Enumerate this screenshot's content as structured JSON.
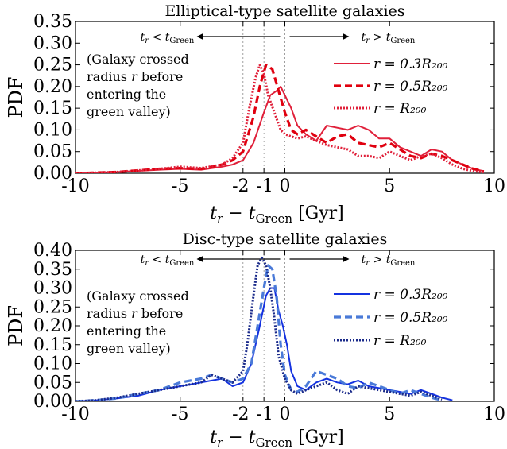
{
  "chart_data": [
    {
      "type": "line",
      "title": "Elliptical-type satellite galaxies",
      "xlabel": "t_r − t_Green [Gyr]",
      "ylabel": "PDF",
      "xlim": [
        -10,
        10
      ],
      "ylim": [
        0,
        0.35
      ],
      "xticks": [
        "-10",
        "-5",
        "-2",
        "-1",
        "0",
        "5",
        "10"
      ],
      "xtick_values": [
        -10,
        -5,
        -2,
        -1,
        0,
        5,
        10
      ],
      "yticks": [
        "0.00",
        "0.05",
        "0.10",
        "0.15",
        "0.20",
        "0.25",
        "0.30",
        "0.35"
      ],
      "grid_x": [
        -2,
        -1,
        0
      ],
      "annotation": "(Galaxy crossed|radius r before|entering the|green valley)",
      "arrow_left_label": "t_r < t_Green",
      "arrow_right_label": "t_r > t_Green",
      "legend_position": "right",
      "series": [
        {
          "name": "r = 0.3R₂₀₀",
          "style": "solid",
          "color": "#e0203a",
          "x": [
            -10,
            -8,
            -6,
            -5,
            -4,
            -3,
            -2.5,
            -2,
            -1.5,
            -1,
            -0.7,
            -0.4,
            -0.2,
            0,
            0.3,
            0.6,
            1,
            1.5,
            2,
            2.5,
            3,
            3.5,
            4,
            4.5,
            5,
            5.5,
            6,
            6.5,
            7,
            7.5,
            8,
            8.5,
            9,
            9.5
          ],
          "y": [
            0,
            0.003,
            0.008,
            0.01,
            0.008,
            0.015,
            0.02,
            0.03,
            0.07,
            0.14,
            0.18,
            0.19,
            0.2,
            0.18,
            0.15,
            0.11,
            0.09,
            0.075,
            0.11,
            0.105,
            0.1,
            0.11,
            0.1,
            0.08,
            0.08,
            0.06,
            0.05,
            0.04,
            0.055,
            0.05,
            0.03,
            0.02,
            0.01,
            0.005
          ]
        },
        {
          "name": "r = 0.5R₂₀₀",
          "style": "dashed",
          "color": "#e0000f",
          "x": [
            -10,
            -8,
            -6,
            -5,
            -4,
            -3,
            -2.5,
            -2,
            -1.5,
            -1.2,
            -0.9,
            -0.6,
            -0.3,
            0,
            0.3,
            0.6,
            1,
            1.5,
            2,
            2.5,
            3,
            3.5,
            4,
            4.5,
            5,
            5.5,
            6,
            6.5,
            7,
            7.5,
            8,
            8.5,
            9,
            9.5
          ],
          "y": [
            0,
            0.003,
            0.01,
            0.012,
            0.01,
            0.02,
            0.03,
            0.05,
            0.13,
            0.2,
            0.25,
            0.24,
            0.19,
            0.14,
            0.1,
            0.09,
            0.1,
            0.085,
            0.07,
            0.085,
            0.09,
            0.07,
            0.065,
            0.06,
            0.07,
            0.055,
            0.04,
            0.035,
            0.045,
            0.04,
            0.03,
            0.02,
            0.01,
            0.004
          ]
        },
        {
          "name": "r = R₂₀₀",
          "style": "dotted",
          "color": "#e0203a",
          "x": [
            -10,
            -8,
            -6,
            -5,
            -4,
            -3,
            -2.5,
            -2,
            -1.7,
            -1.4,
            -1.2,
            -1,
            -0.8,
            -0.5,
            -0.2,
            0,
            0.3,
            0.6,
            1,
            1.5,
            2,
            2.5,
            3,
            3.5,
            4,
            4.5,
            5,
            5.5,
            6,
            6.5,
            7,
            7.5,
            8,
            8.5,
            9,
            9.5
          ],
          "y": [
            0,
            0.003,
            0.01,
            0.015,
            0.012,
            0.02,
            0.035,
            0.07,
            0.15,
            0.22,
            0.25,
            0.23,
            0.18,
            0.14,
            0.1,
            0.09,
            0.085,
            0.08,
            0.085,
            0.075,
            0.065,
            0.06,
            0.055,
            0.04,
            0.04,
            0.035,
            0.05,
            0.04,
            0.03,
            0.04,
            0.045,
            0.035,
            0.02,
            0.01,
            0.005,
            0.002
          ]
        }
      ]
    },
    {
      "type": "line",
      "title": "Disc-type satellite galaxies",
      "xlabel": "t_r − t_Green [Gyr]",
      "ylabel": "PDF",
      "xlim": [
        -10,
        10
      ],
      "ylim": [
        0,
        0.4
      ],
      "xticks": [
        "-10",
        "-5",
        "-2",
        "-1",
        "0",
        "5",
        "10"
      ],
      "xtick_values": [
        -10,
        -5,
        -2,
        -1,
        0,
        5,
        10
      ],
      "yticks": [
        "0.00",
        "0.05",
        "0.10",
        "0.15",
        "0.20",
        "0.25",
        "0.30",
        "0.35",
        "0.40"
      ],
      "grid_x": [
        -2,
        -1,
        0
      ],
      "annotation": "(Galaxy crossed|radius r before|entering the|green valley)",
      "arrow_left_label": "t_r < t_Green",
      "arrow_right_label": "t_r > t_Green",
      "legend_position": "right",
      "series": [
        {
          "name": "r = 0.3R₂₀₀",
          "style": "solid",
          "color": "#1432e0",
          "x": [
            -10,
            -9,
            -8,
            -7,
            -6,
            -5,
            -4,
            -3,
            -2.5,
            -2,
            -1.6,
            -1.2,
            -0.9,
            -0.7,
            -0.5,
            -0.3,
            -0.1,
            0.1,
            0.3,
            0.6,
            1,
            1.5,
            2,
            2.5,
            3,
            3.5,
            4,
            4.5,
            5,
            5.5,
            6,
            6.5,
            7,
            7.5,
            8
          ],
          "y": [
            0,
            0.003,
            0.008,
            0.015,
            0.03,
            0.04,
            0.05,
            0.06,
            0.04,
            0.05,
            0.1,
            0.2,
            0.28,
            0.3,
            0.3,
            0.24,
            0.2,
            0.15,
            0.08,
            0.04,
            0.03,
            0.05,
            0.06,
            0.05,
            0.045,
            0.055,
            0.04,
            0.035,
            0.03,
            0.025,
            0.02,
            0.03,
            0.02,
            0.01,
            0.003
          ]
        },
        {
          "name": "r = 0.5R₂₀₀",
          "style": "dashed",
          "color": "#4a7ad8",
          "x": [
            -10,
            -9,
            -8,
            -7,
            -6,
            -5,
            -4,
            -3.5,
            -3,
            -2.5,
            -2,
            -1.6,
            -1.3,
            -1,
            -0.8,
            -0.6,
            -0.4,
            -0.2,
            0,
            0.3,
            0.6,
            1,
            1.5,
            2,
            2.5,
            3,
            3.5,
            4,
            4.5,
            5,
            5.5,
            6,
            6.5,
            7,
            7.5
          ],
          "y": [
            0,
            0.003,
            0.008,
            0.02,
            0.03,
            0.05,
            0.06,
            0.07,
            0.06,
            0.05,
            0.06,
            0.1,
            0.2,
            0.3,
            0.36,
            0.35,
            0.28,
            0.15,
            0.07,
            0.03,
            0.025,
            0.04,
            0.08,
            0.07,
            0.06,
            0.04,
            0.035,
            0.05,
            0.04,
            0.03,
            0.02,
            0.03,
            0.02,
            0.01,
            0.003
          ]
        },
        {
          "name": "r = R₂₀₀",
          "style": "dotted",
          "color": "#1a2a8a",
          "x": [
            -10,
            -9,
            -8,
            -7,
            -6,
            -5,
            -4,
            -3.5,
            -3,
            -2.5,
            -2,
            -1.8,
            -1.5,
            -1.3,
            -1.1,
            -0.9,
            -0.7,
            -0.5,
            -0.3,
            0,
            0.3,
            0.6,
            1,
            1.5,
            2,
            2.5,
            3,
            3.5,
            4,
            4.5,
            5,
            5.5,
            6,
            6.5,
            7,
            7.5
          ],
          "y": [
            0,
            0.003,
            0.01,
            0.02,
            0.03,
            0.04,
            0.05,
            0.07,
            0.06,
            0.05,
            0.08,
            0.15,
            0.28,
            0.36,
            0.38,
            0.36,
            0.3,
            0.22,
            0.12,
            0.06,
            0.03,
            0.02,
            0.03,
            0.04,
            0.05,
            0.03,
            0.02,
            0.04,
            0.035,
            0.03,
            0.025,
            0.02,
            0.015,
            0.025,
            0.015,
            0.005
          ]
        }
      ]
    }
  ]
}
